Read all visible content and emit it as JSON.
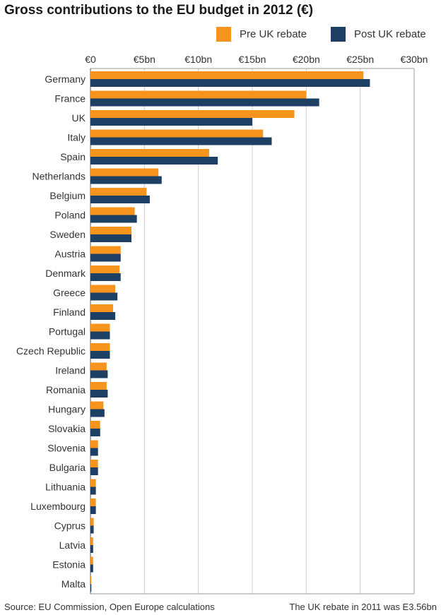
{
  "chart_data": {
    "type": "bar",
    "orientation": "horizontal",
    "title": "Gross contributions to the EU budget in 2012 (€)",
    "categories": [
      "Germany",
      "France",
      "UK",
      "Italy",
      "Spain",
      "Netherlands",
      "Belgium",
      "Poland",
      "Sweden",
      "Austria",
      "Denmark",
      "Greece",
      "Finland",
      "Portugal",
      "Czech Republic",
      "Ireland",
      "Romania",
      "Hungary",
      "Slovakia",
      "Slovenia",
      "Bulgaria",
      "Lithuania",
      "Luxembourg",
      "Cyprus",
      "Latvia",
      "Estonia",
      "Malta"
    ],
    "series": [
      {
        "name": "Pre UK rebate",
        "color": "#f7941d",
        "values": [
          25.3,
          20.0,
          18.9,
          16.0,
          11.0,
          6.3,
          5.2,
          4.1,
          3.8,
          2.8,
          2.7,
          2.3,
          2.1,
          1.8,
          1.8,
          1.5,
          1.5,
          1.2,
          0.9,
          0.7,
          0.7,
          0.5,
          0.5,
          0.3,
          0.25,
          0.25,
          0.08
        ]
      },
      {
        "name": "Post UK rebate",
        "color": "#1d3f63",
        "values": [
          25.9,
          21.2,
          15.0,
          16.8,
          11.8,
          6.6,
          5.5,
          4.3,
          3.8,
          2.8,
          2.8,
          2.5,
          2.3,
          1.8,
          1.8,
          1.6,
          1.6,
          1.3,
          0.9,
          0.7,
          0.7,
          0.5,
          0.5,
          0.3,
          0.25,
          0.25,
          0.08
        ]
      }
    ],
    "x_ticks": [
      "€0",
      "€5bn",
      "€10bn",
      "€15bn",
      "€20bn",
      "€25bn",
      "€30bn"
    ],
    "x_tick_values": [
      0,
      5,
      10,
      15,
      20,
      25,
      30
    ],
    "xlim": [
      0,
      30
    ],
    "grid": true,
    "legend": "top-right"
  },
  "footer": {
    "source": "Source: EU Commission, Open Europe calculations",
    "note": "The UK rebate in 2011 was E3.56bn"
  }
}
